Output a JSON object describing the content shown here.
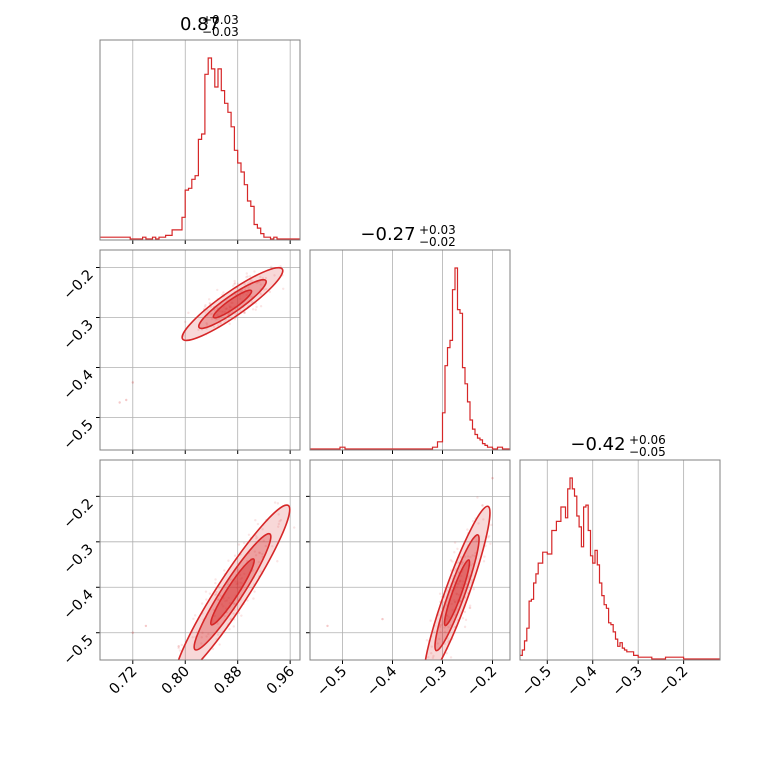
{
  "colors": {
    "accent": "#d62728",
    "grid": "#b0b0b0",
    "frame": "#808080"
  },
  "chart_data": {
    "type": "corner",
    "parameters": [
      {
        "title": {
          "median": "0.87",
          "plus": "+0.03",
          "minus": "−0.03"
        },
        "range": [
          0.67,
          0.975
        ],
        "ticks": [
          0.72,
          0.8,
          0.88,
          0.96
        ],
        "tick_labels": [
          "0.72",
          "0.80",
          "0.88",
          "0.96"
        ],
        "histogram": {
          "x": [
            0.67,
            0.716,
            0.735,
            0.74,
            0.75,
            0.755,
            0.76,
            0.77,
            0.78,
            0.79,
            0.795,
            0.8,
            0.805,
            0.81,
            0.815,
            0.82,
            0.825,
            0.83,
            0.835,
            0.84,
            0.845,
            0.85,
            0.855,
            0.86,
            0.865,
            0.87,
            0.875,
            0.88,
            0.885,
            0.89,
            0.895,
            0.9,
            0.905,
            0.91,
            0.915,
            0.92,
            0.925,
            0.93,
            0.935,
            0.94,
            0.945,
            0.95,
            0.96,
            0.975
          ],
          "density": [
            1,
            0,
            1,
            0,
            1,
            0,
            1,
            2,
            5,
            5,
            12,
            27,
            28,
            33,
            35,
            55,
            58,
            91,
            100,
            94,
            84,
            94,
            82,
            75,
            70,
            62,
            49,
            42,
            37,
            30,
            21,
            18,
            8,
            6,
            3,
            1,
            1,
            0,
            1,
            0,
            0,
            0,
            0
          ]
        }
      },
      {
        "title": {
          "median": "−0.27",
          "plus": "+0.03",
          "minus": "−0.02"
        },
        "range": [
          -0.565,
          -0.165
        ],
        "ticks": [
          -0.5,
          -0.4,
          -0.3,
          -0.2
        ],
        "tick_labels": [
          "−0.5",
          "−0.4",
          "−0.3",
          "−0.2"
        ],
        "histogram": {
          "x": [
            -0.565,
            -0.505,
            -0.495,
            -0.32,
            -0.31,
            -0.3,
            -0.295,
            -0.29,
            -0.285,
            -0.28,
            -0.275,
            -0.27,
            -0.265,
            -0.26,
            -0.255,
            -0.25,
            -0.245,
            -0.24,
            -0.235,
            -0.23,
            -0.225,
            -0.22,
            -0.215,
            -0.21,
            -0.205,
            -0.2,
            -0.19,
            -0.18,
            -0.165
          ],
          "density": [
            0,
            1,
            0,
            1,
            4,
            20,
            46,
            56,
            60,
            88,
            100,
            77,
            75,
            45,
            36,
            26,
            16,
            11,
            8,
            6,
            5,
            3,
            2,
            1,
            1,
            0,
            1,
            0
          ]
        }
      },
      {
        "title": {
          "median": "−0.42",
          "plus": "+0.06",
          "minus": "−0.05"
        },
        "range": [
          -0.56,
          -0.12
        ],
        "ticks": [
          -0.5,
          -0.4,
          -0.3,
          -0.2
        ],
        "tick_labels": [
          "−0.5",
          "−0.4",
          "−0.3",
          "−0.2"
        ],
        "histogram": {
          "x": [
            -0.56,
            -0.555,
            -0.55,
            -0.545,
            -0.54,
            -0.535,
            -0.53,
            -0.525,
            -0.52,
            -0.51,
            -0.5,
            -0.49,
            -0.48,
            -0.47,
            -0.46,
            -0.455,
            -0.45,
            -0.445,
            -0.44,
            -0.435,
            -0.43,
            -0.425,
            -0.42,
            -0.415,
            -0.41,
            -0.405,
            -0.4,
            -0.395,
            -0.39,
            -0.385,
            -0.38,
            -0.375,
            -0.37,
            -0.365,
            -0.36,
            -0.355,
            -0.35,
            -0.345,
            -0.34,
            -0.335,
            -0.33,
            -0.325,
            -0.32,
            -0.315,
            -0.31,
            -0.305,
            -0.3,
            -0.295,
            -0.29,
            -0.28,
            -0.27,
            -0.26,
            -0.25,
            -0.24,
            -0.23,
            -0.22,
            -0.21,
            -0.2,
            -0.17,
            -0.16,
            -0.13,
            -0.12
          ],
          "density": [
            2,
            5,
            10,
            17,
            32,
            33,
            42,
            47,
            53,
            59,
            58,
            71,
            76,
            84,
            78,
            94,
            100,
            94,
            90,
            79,
            73,
            62,
            84,
            85,
            71,
            57,
            53,
            60,
            52,
            42,
            35,
            30,
            28,
            20,
            19,
            15,
            11,
            7,
            9,
            6,
            5,
            4,
            4,
            4,
            2,
            2,
            1,
            1,
            1,
            1,
            0,
            0,
            0,
            1,
            1,
            1,
            1,
            0,
            0,
            0,
            0
          ]
        }
      }
    ],
    "pairs": [
      {
        "x_param": 0,
        "y_param": 1,
        "ellipse": {
          "cx": 0.872,
          "cy": -0.273,
          "dx": 0.076,
          "dy": 0.07,
          "w": 0.032
        },
        "outliers": [
          [
            0.71,
            -0.465
          ],
          [
            0.7,
            -0.47
          ],
          [
            0.72,
            -0.43
          ]
        ]
      },
      {
        "x_param": 0,
        "y_param": 2,
        "ellipse": {
          "cx": 0.872,
          "cy": -0.41,
          "dx": 0.085,
          "dy": 0.19,
          "w": 0.028
        },
        "outliers": [
          [
            0.74,
            -0.485
          ],
          [
            0.72,
            -0.5
          ],
          [
            0.79,
            -0.53
          ]
        ]
      },
      {
        "x_param": 1,
        "y_param": 2,
        "ellipse": {
          "cx": -0.271,
          "cy": -0.412,
          "dx": 0.062,
          "dy": 0.19,
          "w": 0.025
        },
        "outliers": [
          [
            -0.53,
            -0.485
          ],
          [
            -0.42,
            -0.47
          ],
          [
            -0.22,
            -0.22
          ],
          [
            -0.2,
            -0.16
          ]
        ]
      }
    ],
    "contour_levels": [
      1.0,
      0.67,
      0.38
    ]
  }
}
